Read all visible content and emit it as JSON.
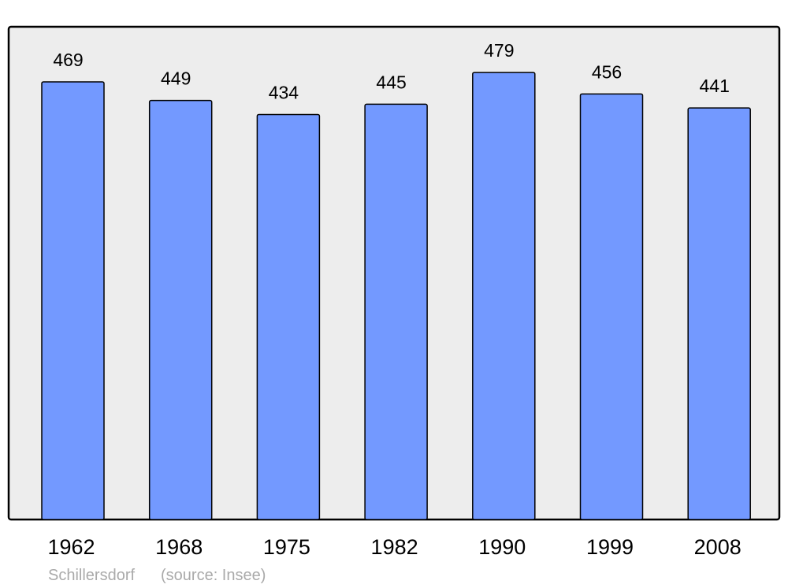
{
  "chart_data": {
    "type": "bar",
    "title": "",
    "xlabel": "",
    "ylabel": "",
    "categories": [
      "1962",
      "1968",
      "1975",
      "1982",
      "1990",
      "1999",
      "2008"
    ],
    "values": [
      469,
      449,
      434,
      445,
      479,
      456,
      441
    ],
    "ylim": [
      0,
      528
    ],
    "grid": false,
    "data_labels": true,
    "colors": {
      "bar": "#7399ff",
      "plot_background": "#ededed",
      "outline": "#000000",
      "footer_text": "#aaaaaa"
    }
  },
  "footer": {
    "place": "Schillersdorf",
    "source": "(source: Insee)"
  }
}
